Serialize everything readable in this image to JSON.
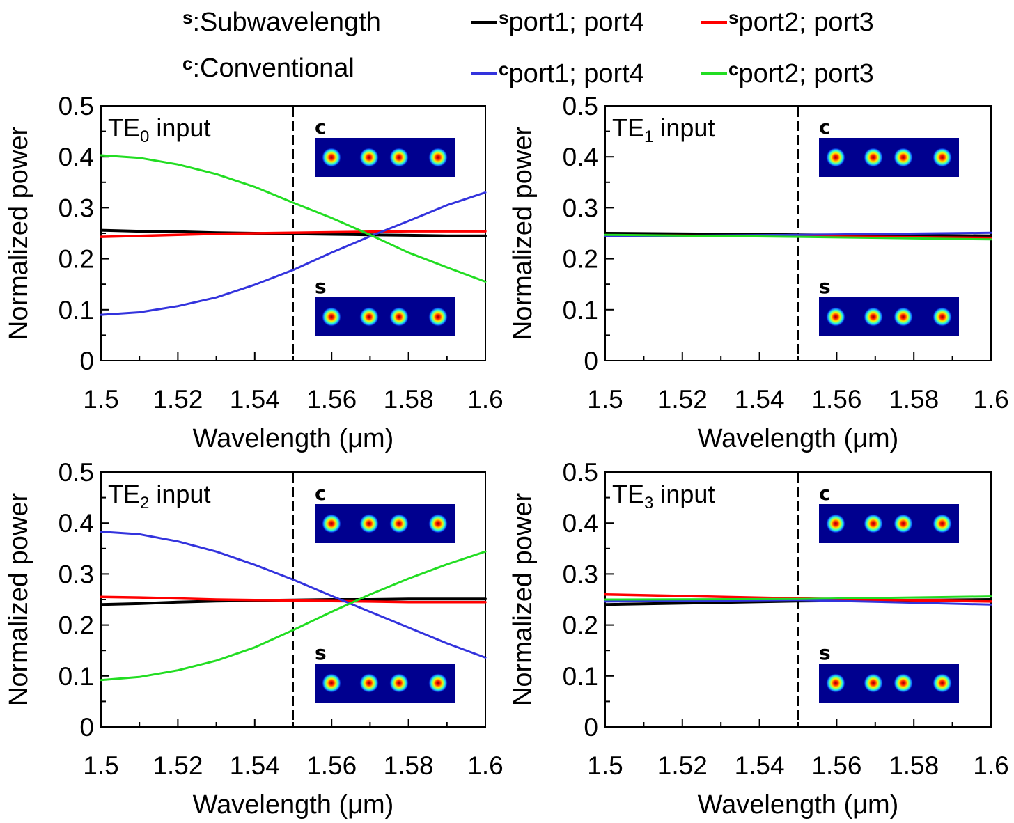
{
  "legend": {
    "note_s": {
      "sup": "s",
      "text": ":Subwavelength"
    },
    "note_c": {
      "sup": "c",
      "text": ":Conventional"
    },
    "entries": [
      {
        "sup": "s",
        "label": "port1; port4",
        "color": "#000000"
      },
      {
        "sup": "s",
        "label": "port2; port3",
        "color": "#ff0000"
      },
      {
        "sup": "c",
        "label": "port1; port4",
        "color": "#3333dd"
      },
      {
        "sup": "c",
        "label": "port2; port3",
        "color": "#22dd22"
      }
    ]
  },
  "chart_data": [
    {
      "type": "line",
      "title_main": "TE",
      "title_sub": "0",
      "title_rest": " input",
      "xlabel": "Wavelength (μm)",
      "ylabel": "Normalized power",
      "xlim": [
        1.5,
        1.6
      ],
      "ylim": [
        0,
        0.5
      ],
      "xticks": [
        "1.5",
        "1.52",
        "1.54",
        "1.56",
        "1.58",
        "1.6"
      ],
      "yticks": [
        "0",
        "0.1",
        "0.2",
        "0.3",
        "0.4",
        "0.5"
      ],
      "marker_line_x": 1.55,
      "insets": [
        "c",
        "s"
      ],
      "x": [
        1.5,
        1.51,
        1.52,
        1.53,
        1.54,
        1.55,
        1.56,
        1.57,
        1.58,
        1.59,
        1.6
      ],
      "series": [
        {
          "legend_index": 0,
          "values": [
            0.256,
            0.254,
            0.253,
            0.251,
            0.25,
            0.249,
            0.248,
            0.247,
            0.246,
            0.245,
            0.245
          ]
        },
        {
          "legend_index": 1,
          "values": [
            0.243,
            0.245,
            0.247,
            0.249,
            0.25,
            0.251,
            0.252,
            0.253,
            0.254,
            0.254,
            0.254
          ]
        },
        {
          "legend_index": 2,
          "values": [
            0.09,
            0.095,
            0.107,
            0.124,
            0.149,
            0.178,
            0.212,
            0.244,
            0.274,
            0.305,
            0.33
          ]
        },
        {
          "legend_index": 3,
          "values": [
            0.403,
            0.398,
            0.385,
            0.366,
            0.341,
            0.31,
            0.28,
            0.247,
            0.212,
            0.183,
            0.155
          ]
        }
      ]
    },
    {
      "type": "line",
      "title_main": "TE",
      "title_sub": "1",
      "title_rest": " input",
      "xlabel": "Wavelength (μm)",
      "ylabel": "Normalized power",
      "xlim": [
        1.5,
        1.6
      ],
      "ylim": [
        0,
        0.5
      ],
      "xticks": [
        "1.5",
        "1.52",
        "1.54",
        "1.56",
        "1.58",
        "1.6"
      ],
      "yticks": [
        "0",
        "0.1",
        "0.2",
        "0.3",
        "0.4",
        "0.5"
      ],
      "marker_line_x": 1.55,
      "insets": [
        "c",
        "s"
      ],
      "x": [
        1.5,
        1.55,
        1.6
      ],
      "series": [
        {
          "legend_index": 0,
          "values": [
            0.25,
            0.247,
            0.245
          ]
        },
        {
          "legend_index": 1,
          "values": [
            0.246,
            0.244,
            0.241
          ]
        },
        {
          "legend_index": 2,
          "values": [
            0.244,
            0.247,
            0.251
          ]
        },
        {
          "legend_index": 3,
          "values": [
            0.247,
            0.243,
            0.238
          ]
        }
      ]
    },
    {
      "type": "line",
      "title_main": "TE",
      "title_sub": "2",
      "title_rest": " input",
      "xlabel": "Wavelength (μm)",
      "ylabel": "Normalized power",
      "xlim": [
        1.5,
        1.6
      ],
      "ylim": [
        0,
        0.5
      ],
      "xticks": [
        "1.5",
        "1.52",
        "1.54",
        "1.56",
        "1.58",
        "1.6"
      ],
      "yticks": [
        "0",
        "0.1",
        "0.2",
        "0.3",
        "0.4",
        "0.5"
      ],
      "marker_line_x": 1.55,
      "insets": [
        "c",
        "s"
      ],
      "x": [
        1.5,
        1.51,
        1.52,
        1.53,
        1.54,
        1.55,
        1.56,
        1.57,
        1.58,
        1.59,
        1.6
      ],
      "series": [
        {
          "legend_index": 0,
          "values": [
            0.24,
            0.242,
            0.245,
            0.247,
            0.248,
            0.249,
            0.25,
            0.25,
            0.251,
            0.251,
            0.251
          ]
        },
        {
          "legend_index": 1,
          "values": [
            0.255,
            0.254,
            0.252,
            0.25,
            0.249,
            0.248,
            0.247,
            0.246,
            0.245,
            0.245,
            0.245
          ]
        },
        {
          "legend_index": 2,
          "values": [
            0.383,
            0.378,
            0.364,
            0.344,
            0.318,
            0.289,
            0.257,
            0.226,
            0.195,
            0.164,
            0.136
          ]
        },
        {
          "legend_index": 3,
          "values": [
            0.092,
            0.098,
            0.111,
            0.13,
            0.156,
            0.19,
            0.226,
            0.26,
            0.291,
            0.319,
            0.344
          ]
        }
      ]
    },
    {
      "type": "line",
      "title_main": "TE",
      "title_sub": "3",
      "title_rest": " input",
      "xlabel": "Wavelength (μm)",
      "ylabel": "Normalized power",
      "xlim": [
        1.5,
        1.6
      ],
      "ylim": [
        0,
        0.5
      ],
      "xticks": [
        "1.5",
        "1.52",
        "1.54",
        "1.56",
        "1.58",
        "1.6"
      ],
      "yticks": [
        "0",
        "0.1",
        "0.2",
        "0.3",
        "0.4",
        "0.5"
      ],
      "marker_line_x": 1.55,
      "insets": [
        "c",
        "s"
      ],
      "x": [
        1.5,
        1.55,
        1.6
      ],
      "series": [
        {
          "legend_index": 0,
          "values": [
            0.24,
            0.247,
            0.25
          ]
        },
        {
          "legend_index": 1,
          "values": [
            0.26,
            0.252,
            0.246
          ]
        },
        {
          "legend_index": 2,
          "values": [
            0.246,
            0.249,
            0.24
          ]
        },
        {
          "legend_index": 3,
          "values": [
            0.25,
            0.251,
            0.256
          ]
        }
      ]
    }
  ]
}
